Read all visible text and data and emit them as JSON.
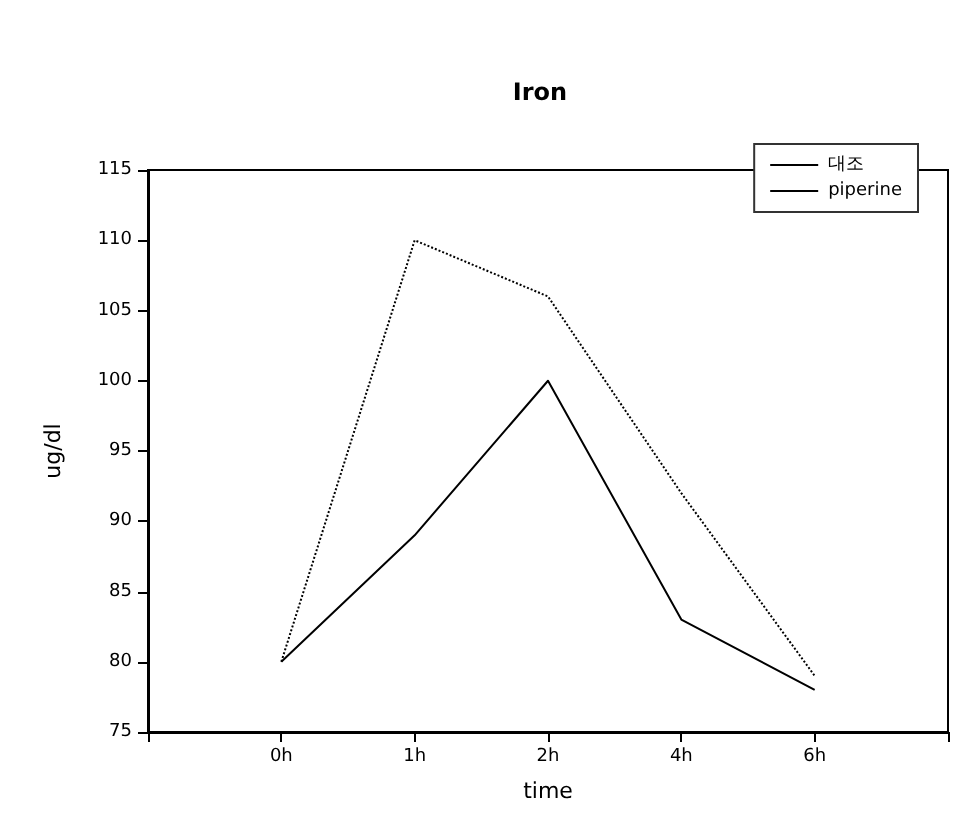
{
  "chart_data": {
    "type": "line",
    "title": "Iron",
    "xlabel": "time",
    "ylabel": "ug/dl",
    "categories": [
      "0h",
      "1h",
      "2h",
      "4h",
      "6h"
    ],
    "series": [
      {
        "name": "대조",
        "color": "#000000",
        "line_style": "solid",
        "values": [
          80,
          89,
          100,
          83,
          78
        ]
      },
      {
        "name": "piperine",
        "color": "#000000",
        "line_style": "dotted",
        "values": [
          80,
          110,
          106,
          92,
          79
        ]
      }
    ],
    "ylim": [
      75,
      115
    ],
    "yticks": [
      75,
      80,
      85,
      90,
      95,
      100,
      105,
      110,
      115
    ],
    "grid": false,
    "legend": "top right",
    "marker": "none"
  }
}
